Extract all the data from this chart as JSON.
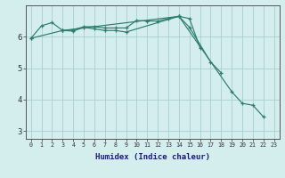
{
  "xlabel": "Humidex (Indice chaleur)",
  "line_color": "#2e7d6e",
  "bg_color": "#d4eeee",
  "grid_color": "#aacece",
  "ylim": [
    2.75,
    7.0
  ],
  "yticks": [
    3,
    4,
    5,
    6
  ],
  "xlim": [
    -0.5,
    23.5
  ],
  "curve1_x": [
    0,
    1,
    2,
    3,
    4,
    5,
    6,
    7,
    8,
    9,
    10,
    11,
    12,
    13,
    14,
    15,
    16
  ],
  "curve1_y": [
    5.95,
    6.35,
    6.45,
    6.2,
    6.22,
    6.32,
    6.32,
    6.28,
    6.28,
    6.28,
    6.52,
    6.5,
    6.5,
    6.58,
    6.65,
    6.58,
    5.65
  ],
  "curve2_x": [
    3,
    4,
    5,
    6,
    7,
    8,
    9,
    14,
    15,
    17,
    18
  ],
  "curve2_y": [
    6.2,
    6.18,
    6.3,
    6.25,
    6.2,
    6.2,
    6.15,
    6.65,
    6.3,
    5.2,
    4.85
  ],
  "curve3_x": [
    0,
    3,
    14,
    19,
    20,
    21,
    22
  ],
  "curve3_y": [
    5.95,
    6.2,
    6.65,
    4.25,
    3.88,
    3.82,
    3.45
  ]
}
